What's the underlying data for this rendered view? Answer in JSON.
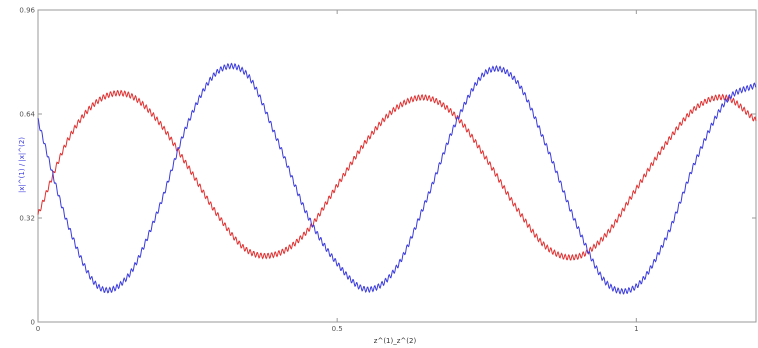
{
  "chart_data": {
    "type": "line",
    "title": "",
    "xlabel": "z^(1)_z^(2)",
    "ylabel": "|x|^(1) / |x|^(2)",
    "xlim": [
      0,
      1.2
    ],
    "ylim": [
      0,
      0.96
    ],
    "x_ticks": [
      {
        "value": 0,
        "label": "0"
      },
      {
        "value": 0.5,
        "label": "0.5"
      },
      {
        "value": 1,
        "label": "1"
      }
    ],
    "y_ticks": [
      {
        "value": 0,
        "label": "0"
      },
      {
        "value": 0.32,
        "label": "0.32"
      },
      {
        "value": 0.64,
        "label": "0.64"
      },
      {
        "value": 0.96,
        "label": "0.96"
      }
    ],
    "grid": false,
    "legend": "none",
    "series": [
      {
        "color": "#e03030",
        "x": [
          0.0,
          0.05,
          0.1,
          0.15,
          0.2,
          0.25,
          0.3,
          0.35,
          0.4,
          0.45,
          0.5,
          0.55,
          0.6,
          0.65,
          0.7,
          0.75,
          0.8,
          0.85,
          0.9,
          0.95,
          1.0,
          1.05,
          1.1,
          1.15,
          1.2
        ],
        "y": [
          0.33,
          0.56,
          0.68,
          0.7,
          0.62,
          0.48,
          0.33,
          0.22,
          0.21,
          0.28,
          0.42,
          0.56,
          0.66,
          0.69,
          0.63,
          0.5,
          0.35,
          0.23,
          0.2,
          0.27,
          0.41,
          0.55,
          0.66,
          0.69,
          0.62
        ]
      },
      {
        "color": "#3b3bdd",
        "x": [
          0.0,
          0.05,
          0.1,
          0.15,
          0.2,
          0.25,
          0.3,
          0.35,
          0.4,
          0.45,
          0.5,
          0.55,
          0.6,
          0.65,
          0.7,
          0.75,
          0.8,
          0.85,
          0.9,
          0.95,
          1.0,
          1.05,
          1.1,
          1.15,
          1.2
        ],
        "y": [
          0.62,
          0.3,
          0.11,
          0.14,
          0.34,
          0.61,
          0.77,
          0.76,
          0.56,
          0.33,
          0.18,
          0.1,
          0.17,
          0.38,
          0.62,
          0.77,
          0.74,
          0.54,
          0.3,
          0.12,
          0.11,
          0.26,
          0.5,
          0.68,
          0.73
        ]
      }
    ],
    "ripple_amplitude": 0.008
  }
}
